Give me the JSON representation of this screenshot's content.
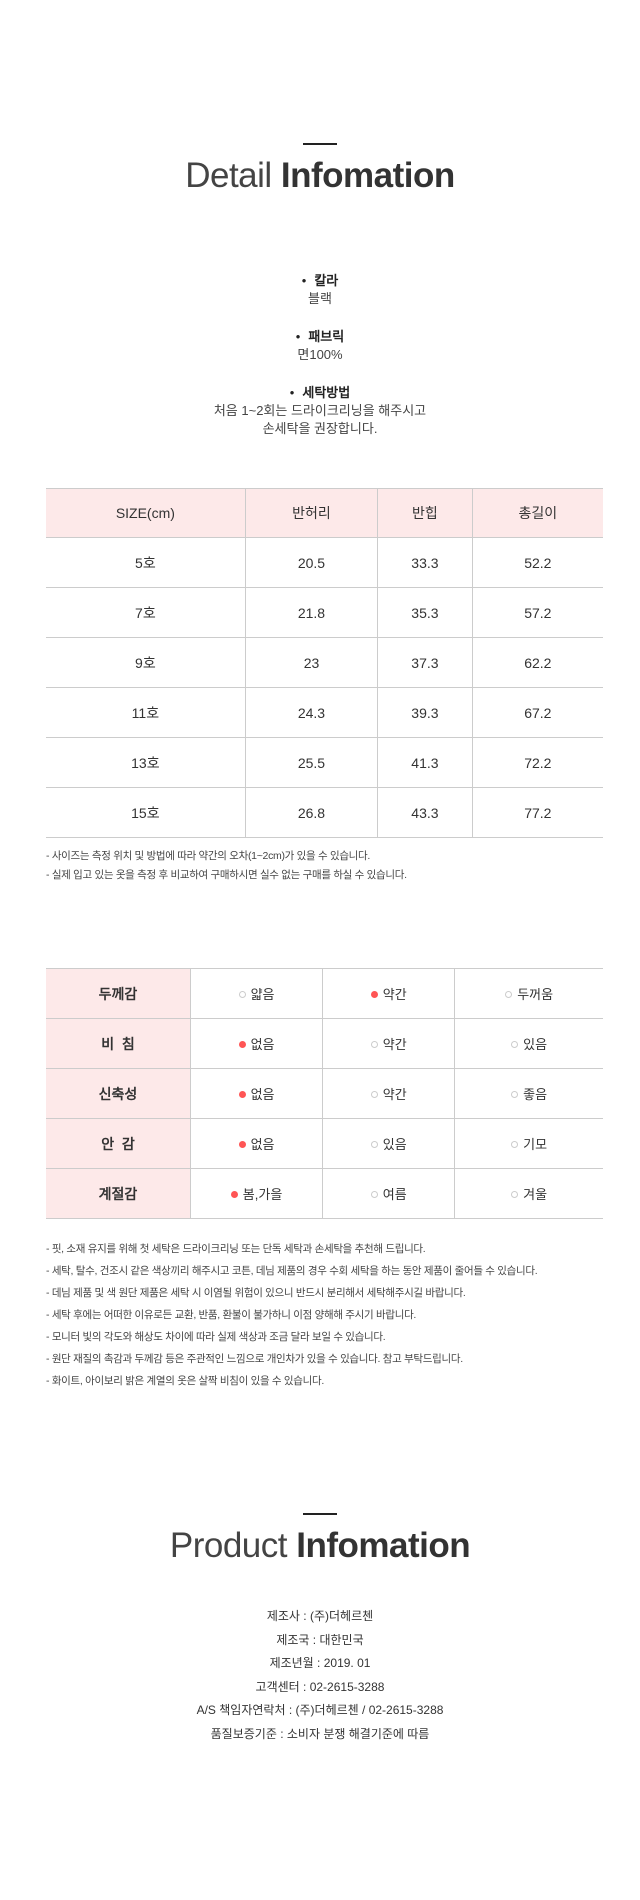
{
  "detail": {
    "title_light": "Detail",
    "title_bold": "Infomation"
  },
  "specs": [
    {
      "label": "칼라",
      "value": [
        "블랙"
      ]
    },
    {
      "label": "패브릭",
      "value": [
        "면100%"
      ]
    },
    {
      "label": "세탁방법",
      "value": [
        "처음 1~2회는 드라이크리닝을 해주시고",
        "손세탁을 권장합니다."
      ]
    }
  ],
  "size_table": {
    "headers": [
      "SIZE(cm)",
      "반허리",
      "반힙",
      "총길이"
    ],
    "rows": [
      [
        "5호",
        "20.5",
        "33.3",
        "52.2"
      ],
      [
        "7호",
        "21.8",
        "35.3",
        "57.2"
      ],
      [
        "9호",
        "23",
        "37.3",
        "62.2"
      ],
      [
        "11호",
        "24.3",
        "39.3",
        "67.2"
      ],
      [
        "13호",
        "25.5",
        "41.3",
        "72.2"
      ],
      [
        "15호",
        "26.8",
        "43.3",
        "77.2"
      ]
    ]
  },
  "size_notes": [
    "- 사이즈는 측정 위치 및 방법에 따라 약간의 오차(1~2cm)가 있을 수 있습니다.",
    "- 실제 입고 있는 옷을 측정 후 비교하여 구매하시면 실수 없는 구매를 하실 수 있습니다."
  ],
  "feature_table": {
    "accent_color": "#ff5555",
    "rows": [
      {
        "label": "두께감",
        "options": [
          "얇음",
          "약간",
          "두꺼움"
        ],
        "selected": 1
      },
      {
        "label": "비  침",
        "options": [
          "없음",
          "약간",
          "있음"
        ],
        "selected": 0
      },
      {
        "label": "신축성",
        "options": [
          "없음",
          "약간",
          "좋음"
        ],
        "selected": 0
      },
      {
        "label": "안  감",
        "options": [
          "없음",
          "있음",
          "기모"
        ],
        "selected": 0
      },
      {
        "label": "계절감",
        "options": [
          "봄,가을",
          "여름",
          "겨울"
        ],
        "selected": 0
      }
    ]
  },
  "care_notes": [
    "- 핏, 소재 유지를 위해 첫 세탁은 드라이크리닝 또는 단독 세탁과 손세탁을 추천해 드립니다.",
    "- 세탁, 탈수, 건조시 같은 색상끼리 해주시고 코튼, 데님 제품의 경우 수회 세탁을 하는 동안 제품이 줄어들 수 있습니다.",
    "- 데님 제품 및 색 원단 제품은 세탁 시 이염될 위험이 있으니 반드시 분리해서 세탁해주시길 바랍니다.",
    "- 세탁 후에는 어떠한 이유로든 교환, 반품, 환불이 불가하니 이점 양해해 주시기 바랍니다.",
    "- 모니터 빛의 각도와 해상도 차이에 따라 실제 색상과 조금 달라 보일 수 있습니다.",
    "- 원단 재질의 촉감과 두께감 등은 주관적인 느낌으로 개인차가 있을 수 있습니다. 참고 부탁드립니다.",
    "- 화이트, 아이보리 밝은 계열의 옷은 살짝 비침이 있을 수 있습니다."
  ],
  "product": {
    "title_light": "Product",
    "title_bold": "Infomation",
    "lines": [
      "제조사 : (주)더헤르첸",
      "제조국 : 대한민국",
      "제조년월 : 2019. 01",
      "고객센터 : 02-2615-3288",
      "A/S 책임자연락처 : (주)더헤르첸 / 02-2615-3288",
      "품질보증기준 : 소비자 분쟁 해결기준에 따름"
    ]
  }
}
